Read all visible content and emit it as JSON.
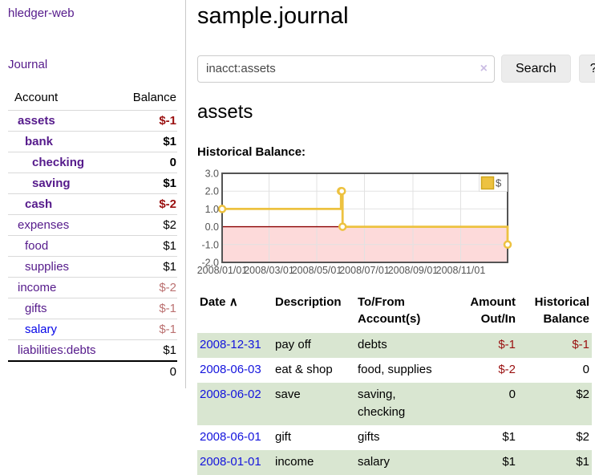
{
  "app": {
    "brand": "hledger-web",
    "nav_journal": "Journal"
  },
  "colors": {
    "link_visited_purple": "#551a8b",
    "link_unvisited_blue": "#0505e8",
    "register_link_blue": "#1414dd",
    "negative_strong": "#9a1010",
    "negative_dim": "#bb7171",
    "row_stripe_green": "#d9e6d1",
    "button_gray": "#ececec"
  },
  "sidebar": {
    "headers": {
      "account": "Account",
      "balance": "Balance"
    },
    "accounts": [
      {
        "name": "assets",
        "level": 1,
        "balance": "$-1",
        "bold": true,
        "balance_tone": "negative-strong",
        "link": "visited"
      },
      {
        "name": "bank",
        "level": 2,
        "balance": "$1",
        "bold": true,
        "balance_tone": "normal",
        "link": "visited"
      },
      {
        "name": "checking",
        "level": 3,
        "balance": "0",
        "bold": true,
        "balance_tone": "normal",
        "link": "visited"
      },
      {
        "name": "saving",
        "level": 3,
        "balance": "$1",
        "bold": true,
        "balance_tone": "normal",
        "link": "visited"
      },
      {
        "name": "cash",
        "level": 2,
        "balance": "$-2",
        "bold": true,
        "balance_tone": "negative-strong",
        "link": "visited"
      },
      {
        "name": "expenses",
        "level": 1,
        "balance": "$2",
        "bold": false,
        "balance_tone": "normal",
        "link": "visited"
      },
      {
        "name": "food",
        "level": 2,
        "balance": "$1",
        "bold": false,
        "balance_tone": "normal",
        "link": "visited"
      },
      {
        "name": "supplies",
        "level": 2,
        "balance": "$1",
        "bold": false,
        "balance_tone": "normal",
        "link": "visited"
      },
      {
        "name": "income",
        "level": 1,
        "balance": "$-2",
        "bold": false,
        "balance_tone": "negative-dim",
        "link": "visited"
      },
      {
        "name": "gifts",
        "level": 2,
        "balance": "$-1",
        "bold": false,
        "balance_tone": "negative-dim",
        "link": "visited"
      },
      {
        "name": "salary",
        "level": 2,
        "balance": "$-1",
        "bold": false,
        "balance_tone": "negative-dim",
        "link": "unvisited"
      },
      {
        "name": "liabilities:debts",
        "level": 1,
        "balance": "$1",
        "bold": false,
        "balance_tone": "normal",
        "link": "visited"
      }
    ],
    "total": "0"
  },
  "main": {
    "title": "sample.journal",
    "search": {
      "value": "inacct:assets",
      "clear_icon": "×",
      "button_label": "Search",
      "help_label": "?"
    },
    "account_heading": "assets",
    "chart_title": "Historical Balance:"
  },
  "chart_data": {
    "type": "line",
    "style": "step",
    "title": "Historical Balance:",
    "series": [
      {
        "name": "$",
        "points": [
          [
            "2008-01-01",
            1
          ],
          [
            "2008-06-01",
            2
          ],
          [
            "2008-06-02",
            2
          ],
          [
            "2008-06-03",
            0
          ],
          [
            "2008-12-31",
            -1
          ]
        ]
      }
    ],
    "xlim": [
      "2008-01-01",
      "2008-12-31"
    ],
    "ylim": [
      -2.0,
      3.0
    ],
    "x_ticks": [
      "2008/01/01",
      "2008/03/01",
      "2008/05/01",
      "2008/07/01",
      "2008/09/01",
      "2008/11/01"
    ],
    "y_ticks": [
      "3.0",
      "2.0",
      "1.0",
      "0.0",
      "-1.0",
      "-2.0"
    ],
    "legend": {
      "label": "$",
      "position": "top-right"
    },
    "grid": true,
    "colors": {
      "series": "#edc240",
      "marker_fill": "#ffffff",
      "negative_region_fill": "#fddada",
      "zero_line": "#8b0000",
      "border": "#545454",
      "gridline": "#e2e2e2",
      "axis_text": "#545454"
    }
  },
  "register": {
    "headers": {
      "date": "Date",
      "sort_icon": "∧",
      "description": "Description",
      "accounts": "To/From Account(s)",
      "amount": "Amount Out/In",
      "balance": "Historical Balance"
    },
    "rows": [
      {
        "date": "2008-12-31",
        "description": "pay off",
        "accounts": "debts",
        "amount": "$-1",
        "amount_negative": true,
        "balance": "$-1",
        "balance_negative": true
      },
      {
        "date": "2008-06-03",
        "description": "eat & shop",
        "accounts": "food, supplies",
        "amount": "$-2",
        "amount_negative": true,
        "balance": "0",
        "balance_negative": false
      },
      {
        "date": "2008-06-02",
        "description": "save",
        "accounts": "saving, checking",
        "amount": "0",
        "amount_negative": false,
        "balance": "$2",
        "balance_negative": false
      },
      {
        "date": "2008-06-01",
        "description": "gift",
        "accounts": "gifts",
        "amount": "$1",
        "amount_negative": false,
        "balance": "$2",
        "balance_negative": false
      },
      {
        "date": "2008-01-01",
        "description": "income",
        "accounts": "salary",
        "amount": "$1",
        "amount_negative": false,
        "balance": "$1",
        "balance_negative": false
      }
    ]
  }
}
